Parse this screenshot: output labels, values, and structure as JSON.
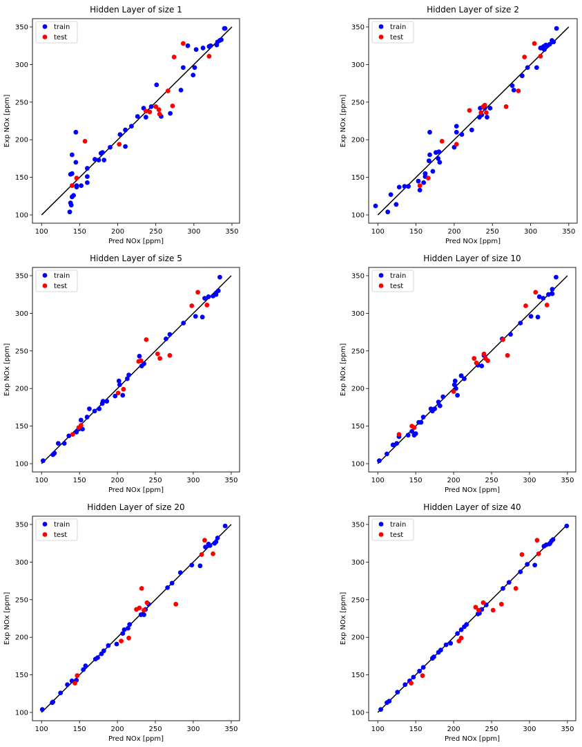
{
  "chart_data": [
    {
      "type": "scatter",
      "title": "Hidden Layer of size 1",
      "xlabel": "Pred NOx [ppm]",
      "ylabel": "Exp NOx [ppm]",
      "xlim": [
        88,
        360
      ],
      "ylim": [
        89,
        361
      ],
      "xticks": [
        100,
        150,
        200,
        250,
        300,
        350
      ],
      "yticks": [
        100,
        150,
        200,
        250,
        300,
        350
      ],
      "grid": false,
      "legend": "top-left",
      "reference_line": {
        "x": [
          100,
          350
        ],
        "y": [
          100,
          350
        ],
        "color": "#000000"
      },
      "series": [
        {
          "name": "train",
          "color": "#0000ff",
          "x": [
            137,
            139,
            138,
            140,
            142,
            146,
            146,
            152,
            160,
            160,
            160,
            170,
            175,
            178,
            180,
            182,
            190,
            203,
            210,
            210,
            218,
            226,
            234,
            237,
            244,
            251,
            257,
            269,
            283,
            286,
            292,
            299,
            301,
            303,
            312,
            320,
            322,
            330,
            331,
            334,
            336,
            340,
            341,
            138,
            140,
            145,
            140,
            145
          ],
          "y": [
            104,
            113,
            116,
            124,
            126,
            137,
            139,
            139,
            143,
            151,
            162,
            174,
            173,
            182,
            183,
            173,
            190,
            207,
            213,
            191,
            218,
            231,
            242,
            230,
            244,
            273,
            231,
            235,
            266,
            296,
            325,
            286,
            296,
            320,
            322,
            324,
            325,
            326,
            330,
            332,
            333,
            348,
            348,
            154,
            180,
            210,
            155,
            170
          ]
        },
        {
          "name": "test",
          "color": "#ff0000",
          "x": [
            140,
            146,
            157,
            202,
            237,
            242,
            250,
            254,
            255,
            266,
            272,
            274,
            286,
            320
          ],
          "y": [
            139,
            149,
            198,
            194,
            238,
            237,
            244,
            240,
            234,
            265,
            245,
            310,
            328,
            311
          ]
        }
      ]
    },
    {
      "type": "scatter",
      "title": "Hidden Layer of size 2",
      "xlabel": "Pred NOx [ppm]",
      "ylabel": "Exp NOx [ppm]",
      "xlim": [
        88,
        361
      ],
      "ylim": [
        89,
        361
      ],
      "xticks": [
        100,
        150,
        200,
        250,
        300,
        350
      ],
      "yticks": [
        100,
        150,
        200,
        250,
        300,
        350
      ],
      "grid": false,
      "legend": "top-left",
      "reference_line": {
        "x": [
          100,
          350
        ],
        "y": [
          100,
          350
        ],
        "color": "#000000"
      },
      "series": [
        {
          "name": "train",
          "color": "#0000ff",
          "x": [
            97,
            113,
            117,
            124,
            128,
            135,
            140,
            153,
            160,
            162,
            162,
            168,
            167,
            172,
            176,
            179,
            180,
            200,
            203,
            203,
            210,
            223,
            233,
            234,
            236,
            240,
            243,
            247,
            276,
            278,
            289,
            296,
            308,
            313,
            315,
            317,
            318,
            320,
            322,
            325,
            328,
            330,
            334,
            155,
            168,
            181
          ],
          "y": [
            112,
            104,
            127,
            114,
            137,
            138,
            138,
            145,
            143,
            155,
            151,
            180,
            172,
            158,
            183,
            175,
            184,
            190,
            210,
            218,
            207,
            213,
            230,
            242,
            233,
            242,
            230,
            242,
            272,
            266,
            285,
            296,
            296,
            322,
            322,
            324,
            320,
            326,
            325,
            327,
            332,
            330,
            348,
            133,
            210,
            170
          ]
        },
        {
          "name": "test",
          "color": "#ff0000",
          "x": [
            155,
            166,
            184,
            203,
            220,
            235,
            238,
            240,
            242,
            268,
            284,
            292,
            305,
            313
          ],
          "y": [
            139,
            149,
            198,
            194,
            239,
            236,
            244,
            246,
            236,
            244,
            265,
            310,
            328,
            311
          ]
        }
      ]
    },
    {
      "type": "scatter",
      "title": "Hidden Layer of size 5",
      "xlabel": "Pred NOx [ppm]",
      "ylabel": "Exp NOx [ppm]",
      "xlim": [
        88,
        361
      ],
      "ylim": [
        89,
        361
      ],
      "xticks": [
        100,
        150,
        200,
        250,
        300,
        350
      ],
      "yticks": [
        100,
        150,
        200,
        250,
        300,
        350
      ],
      "grid": false,
      "legend": "top-left",
      "reference_line": {
        "x": [
          100,
          350
        ],
        "y": [
          100,
          350
        ],
        "color": "#000000"
      },
      "series": [
        {
          "name": "train",
          "color": "#0000ff",
          "x": [
            102,
            115,
            117,
            122,
            130,
            136,
            146,
            149,
            152,
            154,
            160,
            163,
            170,
            176,
            180,
            181,
            186,
            197,
            202,
            203,
            207,
            213,
            215,
            229,
            232,
            235,
            264,
            269,
            287,
            303,
            312,
            315,
            320,
            326,
            330,
            330,
            333,
            335
          ],
          "y": [
            104,
            112,
            114,
            127,
            127,
            137,
            142,
            146,
            158,
            146,
            162,
            173,
            170,
            173,
            180,
            183,
            183,
            190,
            210,
            205,
            191,
            213,
            218,
            243,
            230,
            233,
            266,
            272,
            287,
            296,
            295,
            320,
            322,
            323,
            325,
            327,
            330,
            348
          ]
        },
        {
          "name": "test",
          "color": "#ff0000",
          "x": [
            141,
            149,
            152,
            201,
            208,
            228,
            231,
            238,
            253,
            256,
            269,
            298,
            306,
            318
          ],
          "y": [
            139,
            148,
            151,
            194,
            199,
            236,
            237,
            265,
            246,
            240,
            244,
            310,
            328,
            311
          ]
        }
      ]
    },
    {
      "type": "scatter",
      "title": "Hidden Layer of size 10",
      "xlabel": "Pred NOx [ppm]",
      "ylabel": "Exp NOx [ppm]",
      "xlim": [
        88,
        361
      ],
      "ylim": [
        89,
        361
      ],
      "xticks": [
        100,
        150,
        200,
        250,
        300,
        350
      ],
      "yticks": [
        100,
        150,
        200,
        250,
        300,
        350
      ],
      "grid": false,
      "legend": "top-left",
      "reference_line": {
        "x": [
          100,
          350
        ],
        "y": [
          100,
          350
        ],
        "color": "#000000"
      },
      "series": [
        {
          "name": "train",
          "color": "#0000ff",
          "x": [
            102,
            112,
            120,
            125,
            128,
            140,
            145,
            148,
            150,
            154,
            157,
            160,
            170,
            172,
            175,
            180,
            182,
            186,
            201,
            202,
            203,
            205,
            210,
            214,
            232,
            237,
            240,
            264,
            275,
            288,
            302,
            311,
            313,
            318,
            325,
            330,
            330,
            335
          ],
          "y": [
            104,
            113,
            125,
            127,
            136,
            138,
            143,
            138,
            140,
            155,
            155,
            162,
            173,
            170,
            173,
            182,
            177,
            189,
            205,
            210,
            200,
            191,
            217,
            213,
            231,
            230,
            244,
            266,
            272,
            287,
            296,
            295,
            322,
            320,
            325,
            326,
            332,
            348
          ]
        },
        {
          "name": "test",
          "color": "#ff0000",
          "x": [
            128,
            145,
            148,
            200,
            227,
            230,
            240,
            242,
            245,
            265,
            271,
            295,
            308,
            323
          ],
          "y": [
            139,
            150,
            148,
            196,
            240,
            234,
            246,
            240,
            237,
            265,
            244,
            310,
            328,
            311
          ]
        }
      ]
    },
    {
      "type": "scatter",
      "title": "Hidden Layer of size 20",
      "xlabel": "Pred NOx [ppm]",
      "ylabel": "Exp NOx [ppm]",
      "xlim": [
        88,
        361
      ],
      "ylim": [
        89,
        361
      ],
      "xticks": [
        100,
        150,
        200,
        250,
        300,
        350
      ],
      "yticks": [
        100,
        150,
        200,
        250,
        300,
        350
      ],
      "grid": false,
      "legend": "top-left",
      "reference_line": {
        "x": [
          100,
          350
        ],
        "y": [
          100,
          350
        ],
        "color": "#000000"
      },
      "series": [
        {
          "name": "train",
          "color": "#0000ff",
          "x": [
            101,
            114,
            115,
            125,
            134,
            140,
            146,
            155,
            158,
            171,
            174,
            179,
            182,
            188,
            199,
            207,
            209,
            214,
            216,
            231,
            235,
            237,
            241,
            266,
            272,
            283,
            298,
            309,
            316,
            320,
            322,
            328,
            330,
            332,
            342
          ],
          "y": [
            104,
            113,
            114,
            126,
            137,
            142,
            143,
            157,
            162,
            171,
            173,
            178,
            182,
            189,
            191,
            205,
            210,
            212,
            217,
            230,
            230,
            237,
            244,
            266,
            272,
            286,
            296,
            295,
            320,
            324,
            322,
            325,
            327,
            332,
            348
          ]
        },
        {
          "name": "test",
          "color": "#ff0000",
          "x": [
            144,
            147,
            205,
            215,
            225,
            229,
            232,
            235,
            239,
            277,
            311,
            315,
            326
          ],
          "y": [
            139,
            149,
            195,
            199,
            237,
            239,
            265,
            236,
            246,
            244,
            310,
            329,
            311
          ]
        }
      ]
    },
    {
      "type": "scatter",
      "title": "Hidden Layer of size 40",
      "xlabel": "Pred NOx [ppm]",
      "ylabel": "Exp NOx [ppm]",
      "xlim": [
        88,
        361
      ],
      "ylim": [
        89,
        361
      ],
      "xticks": [
        100,
        150,
        200,
        250,
        300,
        350
      ],
      "yticks": [
        100,
        150,
        200,
        250,
        300,
        350
      ],
      "grid": false,
      "legend": "top-left",
      "reference_line": {
        "x": [
          100,
          350
        ],
        "y": [
          100,
          350
        ],
        "color": "#000000"
      },
      "series": [
        {
          "name": "train",
          "color": "#0000ff",
          "x": [
            104,
            112,
            115,
            126,
            136,
            142,
            147,
            155,
            160,
            172,
            174,
            180,
            183,
            190,
            196,
            205,
            210,
            214,
            217,
            232,
            234,
            237,
            243,
            265,
            273,
            288,
            297,
            307,
            319,
            322,
            326,
            327,
            329,
            331,
            349
          ],
          "y": [
            104,
            113,
            115,
            127,
            137,
            142,
            147,
            155,
            160,
            172,
            174,
            180,
            183,
            190,
            192,
            205,
            210,
            214,
            217,
            231,
            232,
            237,
            243,
            265,
            273,
            287,
            297,
            296,
            321,
            323,
            324,
            325,
            328,
            330,
            348
          ]
        },
        {
          "name": "test",
          "color": "#ff0000",
          "x": [
            144,
            159,
            207,
            210,
            229,
            233,
            239,
            252,
            263,
            282,
            290,
            310,
            312
          ],
          "y": [
            139,
            149,
            195,
            199,
            240,
            236,
            246,
            236,
            244,
            265,
            310,
            329,
            311
          ]
        }
      ]
    }
  ]
}
